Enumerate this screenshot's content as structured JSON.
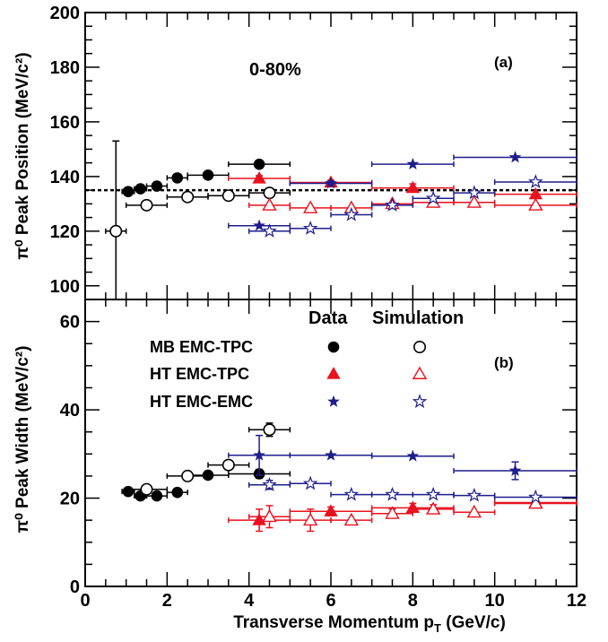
{
  "chart_data": [
    {
      "type": "scatter",
      "panel_label": "(a)",
      "annotation": "0-80%",
      "ylabel": "π⁰ Peak Position (MeV/c²)",
      "ylim": [
        95,
        200
      ],
      "yticks": [
        "100",
        "120",
        "140",
        "160",
        "180",
        "200"
      ],
      "reference_line": 135,
      "series": [
        {
          "group": "MB EMC-TPC",
          "kind": "Data",
          "marker": "circle",
          "filled": true,
          "color": "#000000",
          "points": [
            [
              1.05,
              134.5,
              0.15,
              0,
              0.6
            ],
            [
              1.35,
              135.5,
              0.15,
              0,
              0.6
            ],
            [
              1.75,
              136.5,
              0.25,
              0,
              0.6
            ],
            [
              2.25,
              139.5,
              0.25,
              0,
              0.6
            ],
            [
              3.0,
              140.5,
              0.5,
              0,
              0.6
            ],
            [
              4.25,
              144.5,
              0.75,
              0,
              0.8
            ]
          ]
        },
        {
          "group": "MB EMC-TPC",
          "kind": "Simulation",
          "marker": "circle",
          "filled": false,
          "color": "#000000",
          "points": [
            [
              0.75,
              120,
              0.25,
              33,
              0
            ],
            [
              1.5,
              129.5,
              0.5,
              0,
              0
            ],
            [
              2.5,
              132.5,
              0.5,
              0,
              0
            ],
            [
              3.5,
              133,
              0.5,
              0,
              0
            ],
            [
              4.5,
              134,
              0.5,
              0,
              0
            ]
          ]
        },
        {
          "group": "HT EMC-TPC",
          "kind": "Data",
          "marker": "triangle",
          "filled": true,
          "color": "#e8121e",
          "points": [
            [
              4.25,
              139.3,
              0.75,
              0,
              1.0
            ],
            [
              6.0,
              137.8,
              1.0,
              0,
              0.8
            ],
            [
              8.0,
              135.8,
              1.0,
              0,
              1.5
            ],
            [
              11.0,
              133.5,
              1.0,
              0,
              0
            ]
          ]
        },
        {
          "group": "HT EMC-TPC",
          "kind": "Simulation",
          "marker": "triangle",
          "filled": false,
          "color": "#e8121e",
          "points": [
            [
              4.5,
              129.5,
              0.5,
              0,
              0
            ],
            [
              5.5,
              128.5,
              0.5,
              0,
              0
            ],
            [
              6.5,
              128.5,
              0.5,
              0,
              0
            ],
            [
              7.5,
              130,
              0.5,
              0,
              0
            ],
            [
              8.5,
              130.5,
              0.5,
              0,
              0
            ],
            [
              9.5,
              130.5,
              0.5,
              0,
              0
            ],
            [
              11.0,
              129.5,
              1.0,
              0,
              0
            ]
          ]
        },
        {
          "group": "HT EMC-EMC",
          "kind": "Data",
          "marker": "star",
          "filled": true,
          "color": "#1e1e8c",
          "points": [
            [
              4.25,
              122,
              0.75,
              0,
              0
            ],
            [
              6.0,
              137.5,
              1.0,
              0,
              0.8
            ],
            [
              8.0,
              144.5,
              1.0,
              0,
              0
            ],
            [
              10.5,
              147,
              1.5,
              0,
              0
            ]
          ]
        },
        {
          "group": "HT EMC-EMC",
          "kind": "Simulation",
          "marker": "star",
          "filled": false,
          "color": "#1e1e8c",
          "points": [
            [
              4.5,
              120,
              0.5,
              0,
              0
            ],
            [
              5.5,
              121,
              0.5,
              0,
              0
            ],
            [
              6.5,
              126,
              0.5,
              0,
              0
            ],
            [
              7.5,
              129.5,
              0.5,
              0,
              0
            ],
            [
              8.5,
              132,
              0.5,
              0,
              0
            ],
            [
              9.5,
              134,
              0.5,
              0,
              0
            ],
            [
              11.0,
              138,
              1.0,
              0,
              0
            ]
          ]
        }
      ]
    },
    {
      "type": "scatter",
      "panel_label": "(b)",
      "ylabel": "π⁰ Peak Width (MeV/c²)",
      "ylim": [
        0,
        65
      ],
      "yticks": [
        "0",
        "20",
        "40",
        "60"
      ],
      "xlabel": "Transverse Momentum p",
      "xlabel_sub": "T",
      "xlabel_tail": " (GeV/c)",
      "xlim": [
        0,
        12
      ],
      "xticks": [
        "0",
        "2",
        "4",
        "6",
        "8",
        "10",
        "12"
      ],
      "legend": {
        "header_data": "Data",
        "header_sim": "Simulation",
        "rows": [
          "MB EMC-TPC",
          "HT EMC-TPC",
          "HT EMC-EMC"
        ]
      },
      "series": [
        {
          "group": "MB EMC-TPC",
          "kind": "Data",
          "marker": "circle",
          "filled": true,
          "color": "#000000",
          "points": [
            [
              1.05,
              21.5,
              0.15,
              0,
              0
            ],
            [
              1.35,
              20.5,
              0.15,
              0,
              0
            ],
            [
              1.75,
              20.5,
              0.25,
              0,
              0
            ],
            [
              2.25,
              21.3,
              0.25,
              0,
              0
            ],
            [
              3.0,
              25.2,
              0.5,
              0,
              0.5
            ],
            [
              4.25,
              25.5,
              0.75,
              0,
              1.0
            ]
          ]
        },
        {
          "group": "MB EMC-TPC",
          "kind": "Simulation",
          "marker": "circle",
          "filled": false,
          "color": "#000000",
          "points": [
            [
              1.5,
              22,
              0.5,
              0,
              0
            ],
            [
              2.5,
              25,
              0.5,
              0,
              0
            ],
            [
              3.5,
              27.5,
              0.5,
              0,
              0
            ],
            [
              4.5,
              35.5,
              0.5,
              0,
              1.5
            ]
          ]
        },
        {
          "group": "HT EMC-TPC",
          "kind": "Data",
          "marker": "triangle",
          "filled": true,
          "color": "#e8121e",
          "points": [
            [
              4.25,
              15,
              0.75,
              0,
              2.5
            ],
            [
              6.0,
              17,
              1.0,
              0,
              1.0
            ],
            [
              8.0,
              17.8,
              1.0,
              0,
              1.0
            ],
            [
              11.0,
              19,
              1.0,
              0,
              0
            ]
          ]
        },
        {
          "group": "HT EMC-TPC",
          "kind": "Simulation",
          "marker": "triangle",
          "filled": false,
          "color": "#e8121e",
          "points": [
            [
              4.5,
              15.8,
              0.5,
              0,
              2.5
            ],
            [
              5.5,
              15,
              0.5,
              0,
              2.5
            ],
            [
              6.5,
              15,
              0.5,
              0,
              0
            ],
            [
              7.5,
              16.5,
              0.5,
              0,
              1.0
            ],
            [
              8.5,
              17.5,
              0.5,
              0,
              1.0
            ],
            [
              9.5,
              16.8,
              0.5,
              0,
              0
            ],
            [
              11.0,
              18.8,
              1.0,
              0,
              0
            ]
          ]
        },
        {
          "group": "HT EMC-EMC",
          "kind": "Data",
          "marker": "star",
          "filled": true,
          "color": "#1e1e8c",
          "points": [
            [
              4.25,
              29.7,
              0.75,
              0,
              4.5
            ],
            [
              6.0,
              29.7,
              1.0,
              0,
              0
            ],
            [
              8.0,
              29.5,
              1.0,
              0,
              0
            ],
            [
              10.5,
              26.2,
              1.5,
              0,
              2.0
            ]
          ]
        },
        {
          "group": "HT EMC-EMC",
          "kind": "Simulation",
          "marker": "star",
          "filled": false,
          "color": "#1e1e8c",
          "points": [
            [
              4.5,
              23,
              0.5,
              0,
              1.0
            ],
            [
              5.5,
              23.3,
              0.5,
              0,
              0
            ],
            [
              6.5,
              20.8,
              0.5,
              0,
              0
            ],
            [
              7.5,
              20.8,
              0.5,
              0,
              0
            ],
            [
              8.5,
              20.8,
              0.5,
              0,
              0
            ],
            [
              9.5,
              20.6,
              0.5,
              0,
              0
            ],
            [
              11.0,
              20.2,
              1.0,
              0,
              0
            ]
          ]
        }
      ]
    }
  ]
}
